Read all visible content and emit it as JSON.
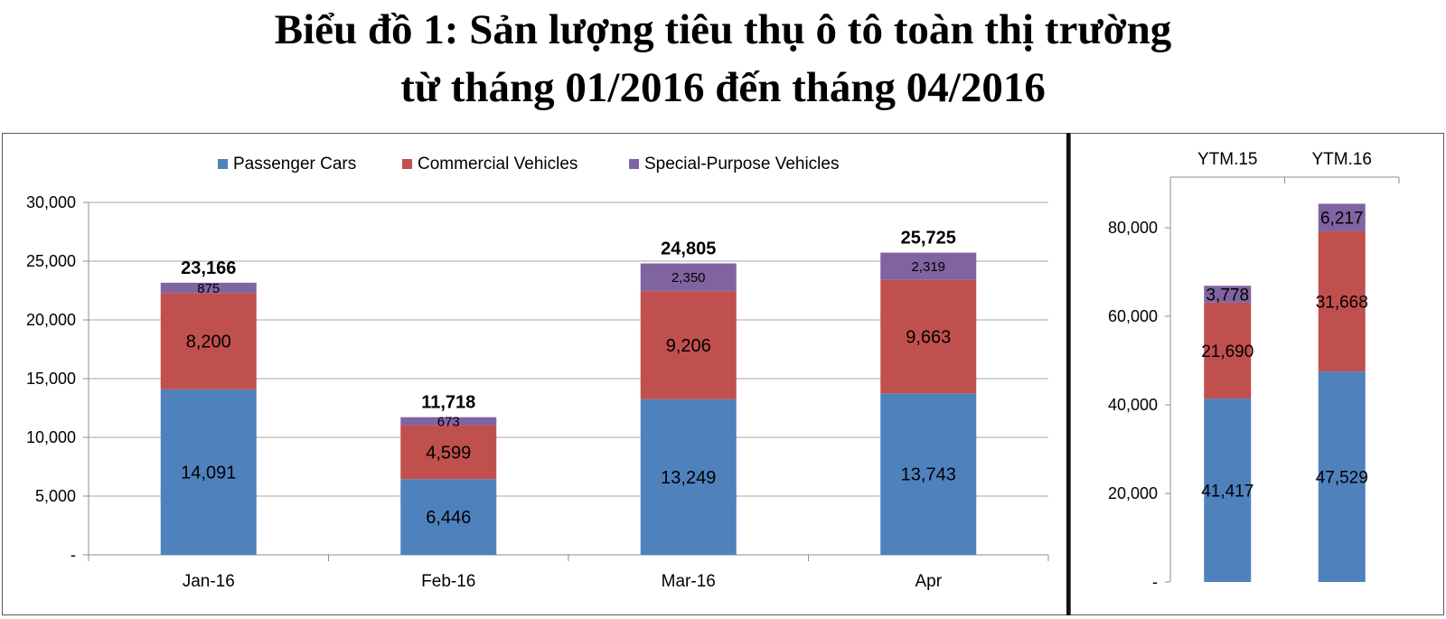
{
  "title_line1": "Biểu đồ 1: Sản lượng tiêu thụ ô tô toàn thị trường",
  "title_line2": "từ tháng 01/2016 đến tháng 04/2016",
  "colors": {
    "Passenger Cars": "#4f81bd",
    "Commercial Vehicles": "#c0504d",
    "Special-Purpose Vehicles": "#8064a2",
    "grid": "#a6a6a6",
    "axis": "#8c8c8c"
  },
  "chart_data": [
    {
      "type": "bar",
      "stacked": true,
      "title": "",
      "xlabel": "",
      "ylabel": "",
      "legend": "top",
      "grid": true,
      "categories": [
        "Jan-16",
        "Feb-16",
        "Mar-16",
        "Apr"
      ],
      "ylim": [
        0,
        30000
      ],
      "yticks": [
        0,
        5000,
        10000,
        15000,
        20000,
        25000,
        30000
      ],
      "ytick_labels": [
        "-",
        "5,000",
        "10,000",
        "15,000",
        "20,000",
        "25,000",
        "30,000"
      ],
      "series": [
        {
          "name": "Passenger Cars",
          "values": [
            14091,
            6446,
            13249,
            13743
          ],
          "labels": [
            "14,091",
            "6,446",
            "13,249",
            "13,743"
          ]
        },
        {
          "name": "Commercial Vehicles",
          "values": [
            8200,
            4599,
            9206,
            9663
          ],
          "labels": [
            "8,200",
            "4,599",
            "9,206",
            "9,663"
          ]
        },
        {
          "name": "Special-Purpose Vehicles",
          "values": [
            875,
            673,
            2350,
            2319
          ],
          "labels": [
            "875",
            "673",
            "2,350",
            "2,319"
          ]
        }
      ],
      "totals": [
        23166,
        11718,
        24805,
        25725
      ],
      "total_labels": [
        "23,166",
        "11,718",
        "24,805",
        "25,725"
      ]
    },
    {
      "type": "bar",
      "stacked": true,
      "title": "",
      "xlabel": "",
      "ylabel": "",
      "legend": "none",
      "grid": false,
      "categories": [
        "YTM.15",
        "YTM.16"
      ],
      "ylim": [
        0,
        90000
      ],
      "yticks": [
        0,
        20000,
        40000,
        60000,
        80000
      ],
      "ytick_labels": [
        "-",
        "20,000",
        "40,000",
        "60,000",
        "80,000"
      ],
      "series": [
        {
          "name": "Passenger Cars",
          "values": [
            41417,
            47529
          ],
          "labels": [
            "41,417",
            "47,529"
          ]
        },
        {
          "name": "Commercial Vehicles",
          "values": [
            21690,
            31668
          ],
          "labels": [
            "21,690",
            "31,668"
          ]
        },
        {
          "name": "Special-Purpose Vehicles",
          "values": [
            3778,
            6217
          ],
          "labels": [
            "3,778",
            "6,217"
          ]
        }
      ]
    }
  ]
}
